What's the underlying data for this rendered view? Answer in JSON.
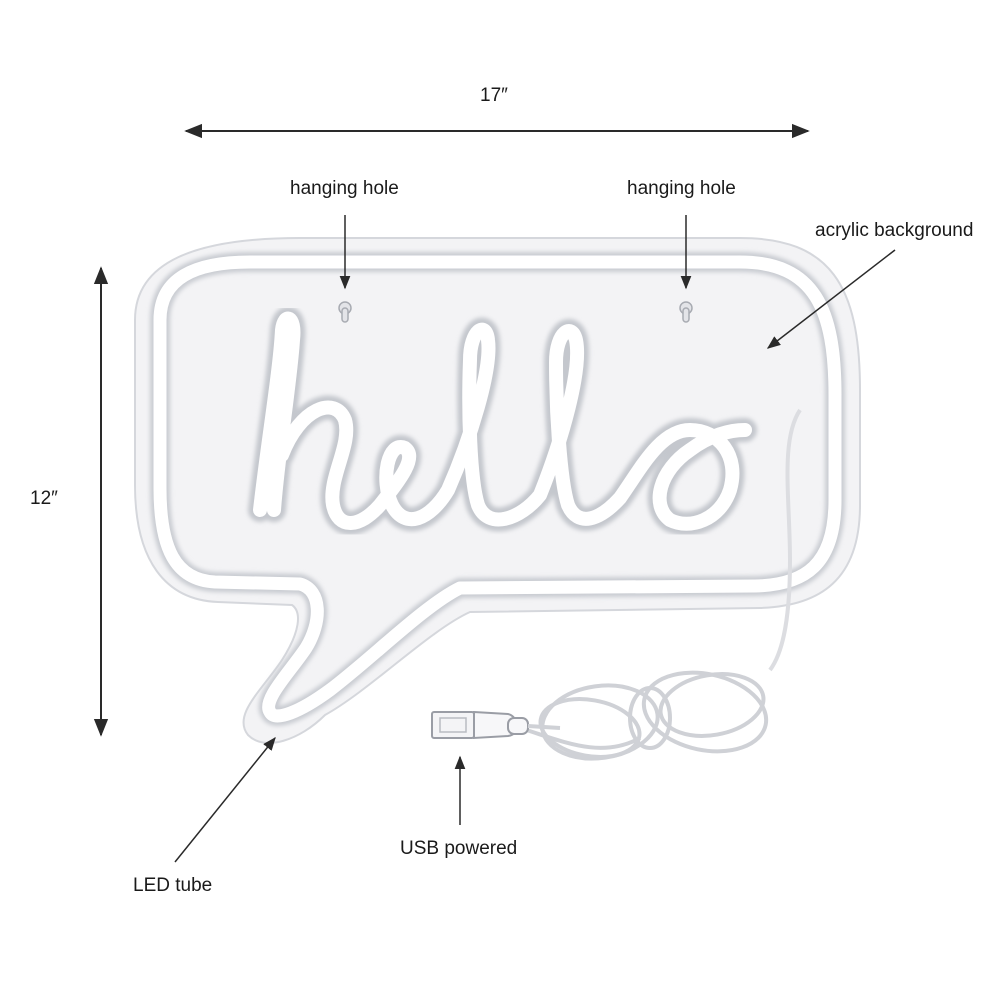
{
  "dimensions": {
    "width_label": "17″",
    "height_label": "12″"
  },
  "callouts": {
    "hanging_hole_left": "hanging hole",
    "hanging_hole_right": "hanging hole",
    "acrylic_background": "acrylic background",
    "usb_powered": "USB powered",
    "led_tube": "LED tube"
  },
  "colors": {
    "acrylic_fill": "#f2f2f4",
    "tube_glow": "#ffffff",
    "tube_shadow": "#c9ccd2",
    "arrow": "#2a2a2a"
  }
}
